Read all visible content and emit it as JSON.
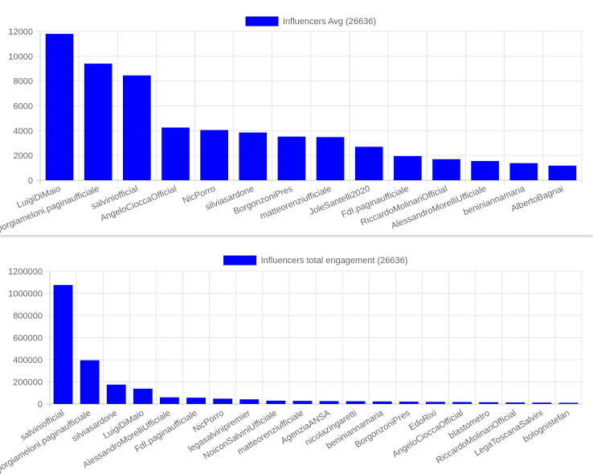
{
  "chart_data": [
    {
      "type": "bar",
      "legend_label": "Influencers Avg (26636)",
      "legend_position": "top",
      "color": "#0000ff",
      "grid": true,
      "ylim": [
        0,
        12000
      ],
      "yticks": [
        0,
        2000,
        4000,
        6000,
        8000,
        10000,
        12000
      ],
      "categories": [
        "LuigiDiMaio",
        "giorgiameloni.paginaufficiale",
        "salviniofficial",
        "AngeloCioccaOfficial",
        "NicPorro",
        "silviasardone",
        "BorgonzoniPres",
        "matteorenziufficiale",
        "JoleSantelli2020",
        "FdI.paginaufficiale",
        "RiccardoMolinariOfficial",
        "AlessandroMorelliUfficiale",
        "beniniannamaria",
        "AlbertoBagnai"
      ],
      "values": [
        11800,
        9400,
        8450,
        4250,
        4050,
        3850,
        3520,
        3480,
        2700,
        1950,
        1700,
        1550,
        1380,
        1180
      ]
    },
    {
      "type": "bar",
      "legend_label": "Influencers total engagement (26636)",
      "legend_position": "top",
      "color": "#0000ff",
      "grid": true,
      "ylim": [
        0,
        1200000
      ],
      "yticks": [
        0,
        200000,
        400000,
        600000,
        800000,
        1000000,
        1200000
      ],
      "categories": [
        "salviniofficial",
        "giorgiameloni.paginaufficiale",
        "silviasardone",
        "LuigiDiMaio",
        "AlessandroMorelliUfficiale",
        "FdI.paginaufficiale",
        "NicPorro",
        "legasalvinipremier",
        "NoiconSalviniUfficiale",
        "matteorenziufficiale",
        "AgenziaANSA",
        "nicolazingaretti",
        "beniniannamaria",
        "BorgonzoniPres",
        "EdoRixi",
        "AngeloCioccaOfficial",
        "blastometro",
        "RiccardoMolinariOfficial",
        "LegaToscanaSalvini",
        "bolognistefan"
      ],
      "values": [
        1075000,
        395000,
        175000,
        138000,
        60000,
        57000,
        48000,
        42000,
        30000,
        28000,
        26000,
        25000,
        23000,
        21000,
        19000,
        18000,
        16000,
        14000,
        13000,
        11000
      ]
    }
  ]
}
